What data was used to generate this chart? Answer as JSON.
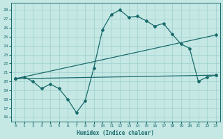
{
  "xlabel": "Humidex (Indice chaleur)",
  "bg_color": "#c5e8e5",
  "line_color": "#1a6b6b",
  "grid_color": "#9ecfcc",
  "xlim": [
    -0.5,
    23.5
  ],
  "ylim": [
    15.5,
    28.8
  ],
  "yticks": [
    16,
    17,
    18,
    19,
    20,
    21,
    22,
    23,
    24,
    25,
    26,
    27,
    28
  ],
  "xticks": [
    0,
    1,
    2,
    3,
    4,
    5,
    6,
    7,
    8,
    9,
    10,
    11,
    12,
    13,
    14,
    15,
    16,
    17,
    18,
    19,
    20,
    21,
    22,
    23
  ],
  "line1_x": [
    0,
    1,
    2,
    3,
    4,
    5,
    6,
    7,
    8,
    9,
    10,
    11,
    12,
    13,
    14,
    15,
    16,
    17,
    18,
    19,
    20,
    21,
    22,
    23
  ],
  "line1_y": [
    20.3,
    20.5,
    20.0,
    19.2,
    19.7,
    19.2,
    18.0,
    16.5,
    17.8,
    21.5,
    25.8,
    27.5,
    28.0,
    27.2,
    27.3,
    26.8,
    26.2,
    26.5,
    25.3,
    24.2,
    23.7,
    20.0,
    20.5,
    20.7
  ],
  "line2_x": [
    0,
    23
  ],
  "line2_y": [
    20.3,
    25.2
  ],
  "line3_x": [
    0,
    23
  ],
  "line3_y": [
    20.3,
    20.7
  ]
}
